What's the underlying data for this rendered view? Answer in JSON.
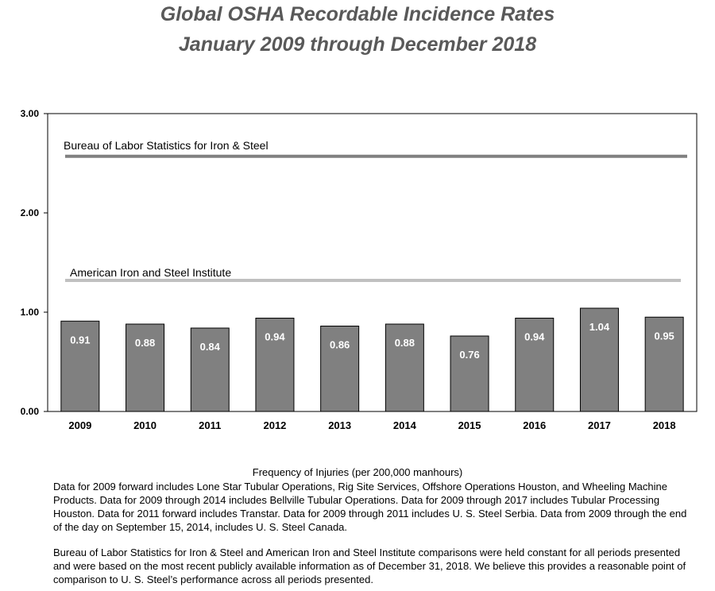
{
  "title_line1": "Global OSHA Recordable Incidence Rates",
  "title_line2": "January 2009 through December 2018",
  "chart_data": {
    "type": "bar",
    "categories": [
      "2009",
      "2010",
      "2011",
      "2012",
      "2013",
      "2014",
      "2015",
      "2016",
      "2017",
      "2018"
    ],
    "values": [
      0.91,
      0.88,
      0.84,
      0.94,
      0.86,
      0.88,
      0.76,
      0.94,
      1.04,
      0.95
    ],
    "value_labels": [
      "0.91",
      "0.88",
      "0.84",
      "0.94",
      "0.86",
      "0.88",
      "0.76",
      "0.94",
      "1.04",
      "0.95"
    ],
    "ylim": [
      0,
      3
    ],
    "yticks": [
      0,
      1,
      2,
      3
    ],
    "ytick_labels": [
      "0.00",
      "1.00",
      "2.00",
      "3.00"
    ],
    "xlabel": "Frequency of Injuries (per 200,000 manhours)",
    "reference_lines": [
      {
        "name": "Bureau of Labor Statistics for Iron & Steel",
        "value": 2.57,
        "color": "#808080"
      },
      {
        "name": "American Iron and Steel Institute",
        "value": 1.32,
        "color": "#c0c0c0"
      }
    ],
    "bar_color": "#808080",
    "label_color": "#ffffff"
  },
  "notes": {
    "paragraph1": "Data for 2009 forward includes Lone Star Tubular Operations, Rig Site Services, Offshore Operations Houston, and Wheeling Machine Products. Data for 2009 through 2014 includes Bellville Tubular Operations. Data for 2009 through 2017 includes Tubular Processing Houston. Data for 2011 forward includes Transtar. Data for 2009 through 2011 includes U. S. Steel Serbia. Data from 2009 through the end of the day on September 15, 2014, includes U. S. Steel Canada.",
    "paragraph2": "Bureau of Labor Statistics for Iron & Steel and American Iron and Steel Institute comparisons were held constant for all periods presented and were based on the most recent publicly available information as of December 31, 2018. We believe this provides a reasonable point of comparison to U. S. Steel’s performance across all periods presented."
  }
}
